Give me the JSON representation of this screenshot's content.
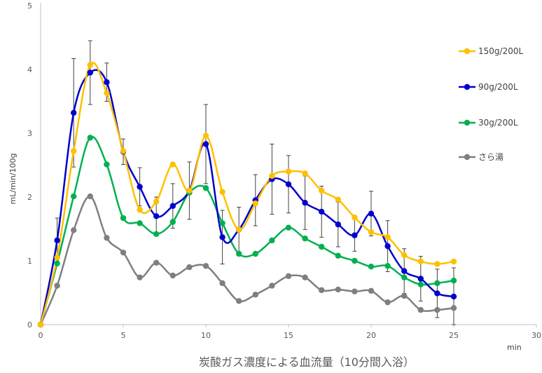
{
  "caption": "炭酸ガス濃度による血流量（10分間入浴）",
  "chart_data": {
    "type": "line",
    "xlabel": "min",
    "ylabel": "mL/min/100g",
    "xlim": [
      0,
      30
    ],
    "ylim": [
      0,
      5
    ],
    "x_ticks": [
      0,
      5,
      10,
      15,
      20,
      25,
      30
    ],
    "y_ticks": [
      0,
      1,
      2,
      3,
      4,
      5
    ],
    "legend_position": "right",
    "smooth": true,
    "error_bars_on": "90g/200L",
    "x": [
      0,
      1,
      2,
      3,
      4,
      5,
      6,
      7,
      8,
      9,
      10,
      11,
      12,
      13,
      14,
      15,
      16,
      17,
      18,
      19,
      20,
      21,
      22,
      23,
      24,
      25
    ],
    "series": [
      {
        "name": "150g/200L",
        "color": "#FFC000",
        "values": [
          0,
          1.05,
          2.72,
          4.07,
          3.63,
          2.72,
          1.8,
          1.93,
          2.51,
          2.1,
          2.96,
          2.08,
          1.49,
          1.9,
          2.33,
          2.4,
          2.37,
          2.1,
          1.96,
          1.68,
          1.45,
          1.37,
          1.09,
          0.99,
          0.95,
          0.99
        ]
      },
      {
        "name": "90g/200L",
        "color": "#0000CC",
        "values": [
          0,
          1.32,
          3.32,
          3.95,
          3.8,
          2.71,
          2.16,
          1.7,
          1.86,
          2.1,
          2.83,
          1.37,
          1.49,
          1.95,
          2.28,
          2.2,
          1.91,
          1.77,
          1.57,
          1.4,
          1.74,
          1.23,
          0.84,
          0.72,
          0.49,
          0.44
        ],
        "errors": [
          0,
          0.35,
          0.85,
          0.5,
          0.3,
          0.2,
          0.3,
          0.3,
          0.35,
          0.45,
          0.62,
          0.42,
          0.35,
          0.4,
          0.55,
          0.45,
          0.42,
          0.4,
          0.35,
          0.25,
          0.35,
          0.4,
          0.35,
          0.35,
          0.38,
          0.45
        ]
      },
      {
        "name": "30g/200L",
        "color": "#00B050",
        "values": [
          0,
          0.96,
          2.01,
          2.93,
          2.51,
          1.67,
          1.59,
          1.42,
          1.61,
          2.07,
          2.14,
          1.59,
          1.11,
          1.11,
          1.32,
          1.52,
          1.35,
          1.22,
          1.08,
          1.0,
          0.91,
          0.92,
          0.74,
          0.63,
          0.65,
          0.69
        ]
      },
      {
        "name": "さら湯",
        "color": "#7F7F7F",
        "values": [
          0,
          0.61,
          1.48,
          2.01,
          1.36,
          1.13,
          0.74,
          0.97,
          0.77,
          0.9,
          0.92,
          0.65,
          0.37,
          0.47,
          0.61,
          0.76,
          0.74,
          0.54,
          0.55,
          0.52,
          0.53,
          0.35,
          0.45,
          0.23,
          0.23,
          0.26
        ]
      }
    ]
  }
}
